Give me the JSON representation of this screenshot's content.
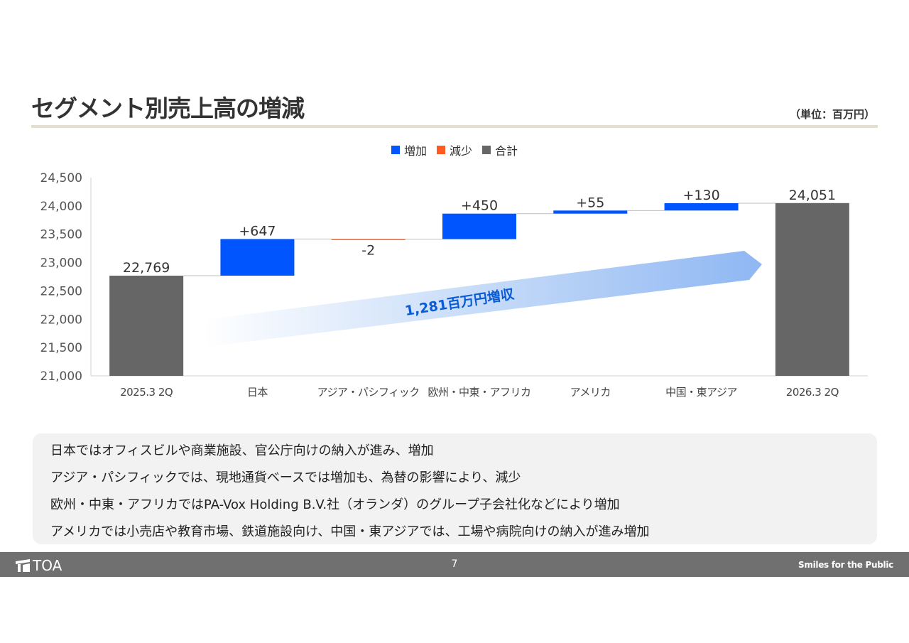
{
  "slide": {
    "title": "セグメント別売上高の増減",
    "unit": "（単位：百万円）",
    "page_number": "7",
    "footer_logo": "TOA",
    "footer_tagline": "Smiles for the Public"
  },
  "legend": [
    {
      "label": "増加",
      "color": "#0055ff"
    },
    {
      "label": "減少",
      "color": "#ff5a1f"
    },
    {
      "label": "合計",
      "color": "#666666"
    }
  ],
  "chart_data": {
    "type": "bar",
    "subtype": "waterfall",
    "categories": [
      "2025.3 2Q",
      "日本",
      "アジア・パシフィック",
      "欧州・中東・アフリカ",
      "アメリカ",
      "中国・東アジア",
      "2026.3 2Q"
    ],
    "values": [
      22769,
      647,
      -2,
      450,
      55,
      130,
      24051
    ],
    "kinds": [
      "total",
      "increase",
      "decrease",
      "increase",
      "increase",
      "increase",
      "total"
    ],
    "data_labels": [
      "22,769",
      "+647",
      "-2",
      "+450",
      "+55",
      "+130",
      "24,051"
    ],
    "ylim": [
      21000,
      24500
    ],
    "yticks": [
      21000,
      21500,
      22000,
      22500,
      23000,
      23500,
      24000,
      24500
    ],
    "ytick_labels": [
      "21,000",
      "21,500",
      "22,000",
      "22,500",
      "23,000",
      "23,500",
      "24,000",
      "24,500"
    ],
    "colors": {
      "increase": "#0055ff",
      "decrease": "#ff5a1f",
      "total": "#666666"
    },
    "annotation": "1,281百万円増収",
    "annotation_color": "#0a5bd6",
    "grid": false,
    "legend_position": "top-center"
  },
  "comments": [
    "日本ではオフィスビルや商業施設、官公庁向けの納入が進み、増加",
    "アジア・パシフィックでは、現地通貨ベースでは増加も、為替の影響により、減少",
    "欧州・中東・アフリカではPA-Vox Holding B.V.社（オランダ）のグループ子会社化などにより増加",
    "アメリカでは小売店や教育市場、鉄道施設向け、中国・東アジアでは、工場や病院向けの納入が進み増加"
  ]
}
